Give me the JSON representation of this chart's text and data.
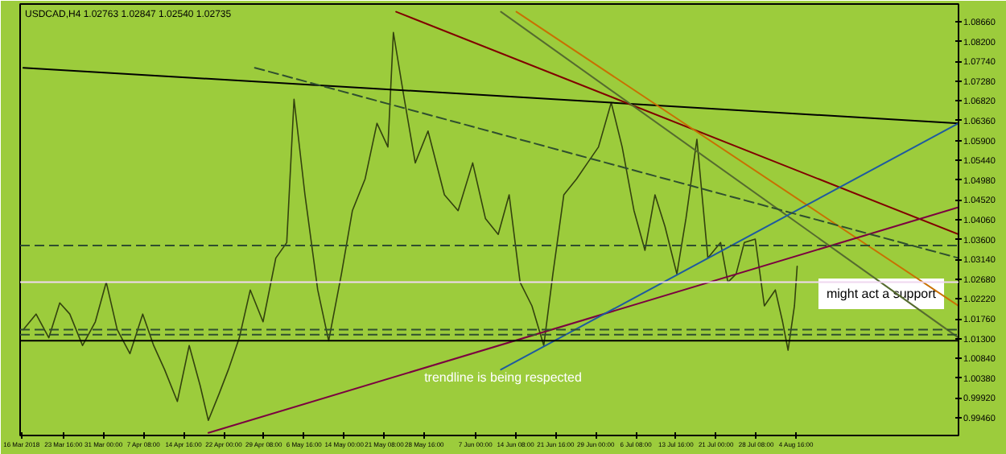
{
  "chart_data": {
    "type": "line",
    "title": "USDCAD,H4  1.02763 1.02847 1.02540 1.02735",
    "x": [
      "2018-03-16T08:00",
      "2018-03-18T16:00",
      "2018-03-21T00:00",
      "2018-03-23T00:00",
      "2018-03-24T20:00",
      "2018-03-27T04:00",
      "2018-03-29T12:00",
      "2018-03-31T12:00",
      "2018-04-02T12:00",
      "2018-04-04T20:00",
      "2018-04-07T04:00",
      "2018-04-09T04:00",
      "2018-04-11T04:00",
      "2018-04-13T12:00",
      "2018-04-15T16:00",
      "2018-04-17T16:00",
      "2018-04-19T04:00",
      "2018-04-21T04:00",
      "2018-04-22T20:00",
      "2018-04-24T20:00",
      "2018-04-26T20:00",
      "2018-04-29T04:00",
      "2018-05-01T12:00",
      "2018-05-03T12:00",
      "2018-05-04T20:00",
      "2018-05-06T20:00",
      "2018-05-09T04:00",
      "2018-05-11T04:00",
      "2018-05-13T12:00",
      "2018-05-15T12:00",
      "2018-05-17T20:00",
      "2018-05-20T00:00",
      "2018-05-22T00:00",
      "2018-05-23T00:00",
      "2018-05-25T00:00",
      "2018-05-27T00:00",
      "2018-05-29T08:00",
      "2018-06-01T08:00",
      "2018-06-03T20:00",
      "2018-06-06T12:00",
      "2018-06-08T20:00",
      "2018-06-11T04:00",
      "2018-06-13T04:00",
      "2018-06-15T04:00",
      "2018-06-17T08:00",
      "2018-06-19T12:00",
      "2018-06-21T04:00",
      "2018-06-23T04:00",
      "2018-06-25T12:00",
      "2018-06-27T12:00",
      "2018-06-29T12:00",
      "2018-07-01T20:00",
      "2018-07-03T20:00",
      "2018-07-06T00:00",
      "2018-07-08T00:00",
      "2018-07-09T20:00",
      "2018-07-11T16:00",
      "2018-07-13T20:00",
      "2018-07-15T12:00",
      "2018-07-17T12:00",
      "2018-07-19T12:00",
      "2018-07-21T20:00",
      "2018-07-23T04:00",
      "2018-07-24T16:00",
      "2018-07-26T04:00",
      "2018-07-28T04:00",
      "2018-07-29T20:00",
      "2018-07-31T20:00",
      "2018-08-02T04:00",
      "2018-08-03T04:00",
      "2018-08-04T08:00",
      "2018-08-04T20:00"
    ],
    "series": [
      {
        "color": "#33420e",
        "values": [
          1.0151,
          1.0187,
          1.0132,
          1.0213,
          1.0187,
          1.0114,
          1.0169,
          1.0261,
          1.0151,
          1.0095,
          1.0187,
          1.0114,
          1.0058,
          0.9984,
          1.0114,
          1.0021,
          0.994,
          1.0003,
          1.0058,
          1.0132,
          1.0243,
          1.0169,
          1.0317,
          1.0353,
          1.0686,
          1.0464,
          1.0243,
          1.0125,
          1.028,
          1.0427,
          1.0501,
          1.063,
          1.0575,
          1.0841,
          1.0686,
          1.0538,
          1.0612,
          1.0464,
          1.0427,
          1.0538,
          1.0409,
          1.0372,
          1.0464,
          1.0261,
          1.0206,
          1.0114,
          1.028,
          1.0464,
          1.0501,
          1.0538,
          1.0575,
          1.0678,
          1.0575,
          1.0427,
          1.0335,
          1.0464,
          1.039,
          1.028,
          1.0409,
          1.0593,
          1.0317,
          1.0353,
          1.0261,
          1.028,
          1.0353,
          1.0361,
          1.0206,
          1.0243,
          1.0169,
          1.0103,
          1.0206,
          1.0298
        ]
      },
      {
        "color": "#000000",
        "x": [
          "2018-03-16T08:00",
          "2018-09-03T08:00"
        ],
        "values": [
          1.0759,
          1.063
        ]
      },
      {
        "color": "#800000",
        "x": [
          "2018-05-23T12:00",
          "2018-09-03T08:00"
        ],
        "values": [
          1.0889,
          1.0372
        ]
      },
      {
        "color": "#c87000",
        "x": [
          "2018-06-14T12:00",
          "2018-09-03T08:00"
        ],
        "values": [
          1.0889,
          1.0206
        ]
      },
      {
        "color": "#556b2f",
        "x": [
          "2018-06-11T16:00",
          "2018-09-03T08:00"
        ],
        "values": [
          1.0889,
          1.0132
        ]
      },
      {
        "color": "#7b0040",
        "x": [
          "2018-04-19T04:00",
          "2018-09-03T08:00"
        ],
        "values": [
          0.9911,
          1.0435
        ]
      },
      {
        "color": "#1e5aa0",
        "x": [
          "2018-06-11T16:00",
          "2018-09-03T08:00"
        ],
        "values": [
          1.0058,
          1.063
        ]
      },
      {
        "color": "#2f4f2f",
        "x": [
          "2018-04-27T16:00",
          "2018-09-03T08:00"
        ],
        "values": [
          1.0759,
          1.0317
        ],
        "line_style": "dashed"
      }
    ],
    "ref_lines": [
      {
        "axis": "y",
        "value": 1.0125,
        "color": "#000000"
      },
      {
        "axis": "y",
        "value": 1.0346,
        "color": "#2f4f2f",
        "line_style": "dashed"
      },
      {
        "axis": "y",
        "value": 1.0261,
        "color": "#f0d8f0"
      },
      {
        "axis": "y",
        "value": 1.0151,
        "color": "#2f4f2f",
        "line_style": "dashed"
      },
      {
        "axis": "y",
        "value": 1.0139,
        "color": "#2f4f2f",
        "line_style": "dashed"
      }
    ],
    "annotations": [
      "trendline is being respected",
      "might act a support"
    ],
    "xlim": [
      "2018-03-15T18:00",
      "2018-09-03T08:00"
    ],
    "xticks": [
      {
        "value": "2018-03-16T00:00",
        "label": "16 Mar 2018"
      },
      {
        "value": "2018-03-23T16:00",
        "label": "23 Mar 16:00"
      },
      {
        "value": "2018-03-31T00:00",
        "label": "31 Mar 00:00"
      },
      {
        "value": "2018-04-07T08:00",
        "label": "7 Apr 08:00"
      },
      {
        "value": "2018-04-14T16:00",
        "label": "14 Apr 16:00"
      },
      {
        "value": "2018-04-22T00:00",
        "label": "22 Apr 00:00"
      },
      {
        "value": "2018-04-29T08:00",
        "label": "29 Apr 08:00"
      },
      {
        "value": "2018-05-06T16:00",
        "label": "6 May 16:00"
      },
      {
        "value": "2018-05-14T00:00",
        "label": "14 May 00:00"
      },
      {
        "value": "2018-05-21T08:00",
        "label": "21 May 08:00"
      },
      {
        "value": "2018-05-28T16:00",
        "label": "28 May 16:00"
      },
      {
        "value": "2018-06-07T00:00",
        "label": "7 Jun 00:00"
      },
      {
        "value": "2018-06-14T08:00",
        "label": "14 Jun 08:00"
      },
      {
        "value": "2018-06-21T16:00",
        "label": "21 Jun 16:00"
      },
      {
        "value": "2018-06-29T00:00",
        "label": "29 Jun 00:00"
      },
      {
        "value": "2018-07-06T08:00",
        "label": "6 Jul 08:00"
      },
      {
        "value": "2018-07-13T16:00",
        "label": "13 Jul 16:00"
      },
      {
        "value": "2018-07-21T00:00",
        "label": "21 Jul 00:00"
      },
      {
        "value": "2018-07-28T08:00",
        "label": "28 Jul 08:00"
      },
      {
        "value": "2018-08-04T16:00",
        "label": "4 Aug 16:00"
      }
    ],
    "ylim": [
      0.9905,
      1.0907
    ],
    "yticks": [
      {
        "value": 1.0866,
        "label": "1.08660"
      },
      {
        "value": 1.082,
        "label": "1.08200"
      },
      {
        "value": 1.0774,
        "label": "1.07740"
      },
      {
        "value": 1.0728,
        "label": "1.07280"
      },
      {
        "value": 1.0682,
        "label": "1.06820"
      },
      {
        "value": 1.0636,
        "label": "1.06360"
      },
      {
        "value": 1.059,
        "label": "1.05900"
      },
      {
        "value": 1.0544,
        "label": "1.05440"
      },
      {
        "value": 1.0498,
        "label": "1.04980"
      },
      {
        "value": 1.0452,
        "label": "1.04520"
      },
      {
        "value": 1.0406,
        "label": "1.04060"
      },
      {
        "value": 1.036,
        "label": "1.03600"
      },
      {
        "value": 1.0314,
        "label": "1.03140"
      },
      {
        "value": 1.0268,
        "label": "1.02680"
      },
      {
        "value": 1.0222,
        "label": "1.02220"
      },
      {
        "value": 1.0176,
        "label": "1.01760"
      },
      {
        "value": 1.013,
        "label": "1.01300"
      },
      {
        "value": 1.0084,
        "label": "1.00840"
      },
      {
        "value": 1.0038,
        "label": "1.00380"
      },
      {
        "value": 0.9992,
        "label": "0.99920"
      },
      {
        "value": 0.9946,
        "label": "0.99460"
      }
    ],
    "grid": false,
    "marker": "none",
    "line_style": "solid"
  }
}
